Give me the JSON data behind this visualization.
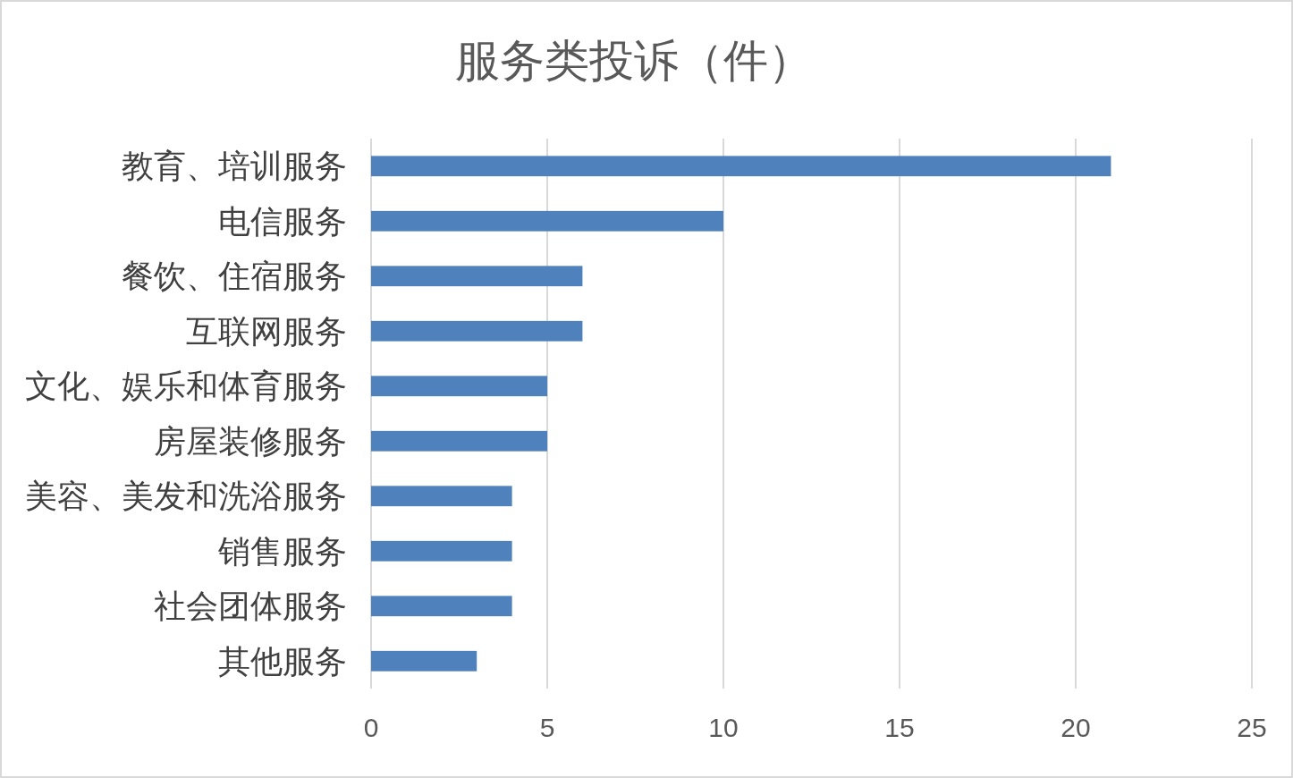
{
  "chart_data": {
    "type": "bar",
    "orientation": "horizontal",
    "title": "服务类投诉（件）",
    "categories": [
      "教育、培训服务",
      "电信服务",
      "餐饮、住宿服务",
      "互联网服务",
      "文化、娱乐和体育服务",
      "房屋装修服务",
      "美容、美发和洗浴服务",
      "销售服务",
      "社会团体服务",
      "其他服务"
    ],
    "values": [
      21,
      10,
      6,
      6,
      5,
      5,
      4,
      4,
      4,
      3
    ],
    "color": "#4f81bd",
    "xlim": [
      0,
      25
    ],
    "xticks": [
      0,
      5,
      10,
      15,
      20,
      25
    ],
    "grid": "x"
  }
}
